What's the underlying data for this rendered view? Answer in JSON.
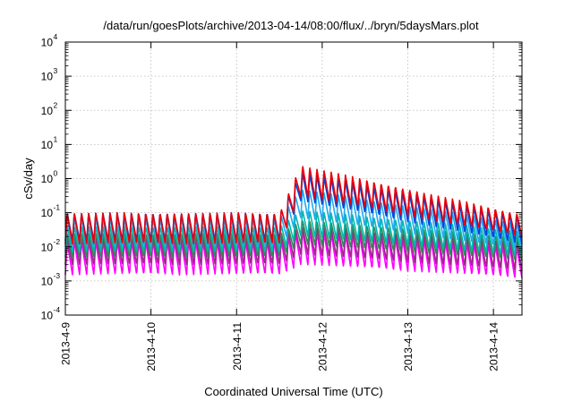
{
  "chart_data": {
    "type": "line",
    "title": "/data/run/goesPlots/archive/2013-04-14/08:00/flux/../bryn/5daysMars.plot",
    "xlabel": "Coordinated Universal Time (UTC)",
    "ylabel": "cSv/day",
    "yscale": "log",
    "ylim_exponents": [
      -4,
      4
    ],
    "y_tick_labels": [
      {
        "base": "10",
        "exp": "-4"
      },
      {
        "base": "10",
        "exp": "-3"
      },
      {
        "base": "10",
        "exp": "-2"
      },
      {
        "base": "10",
        "exp": "-1"
      },
      {
        "base": "10",
        "exp": "0"
      },
      {
        "base": "10",
        "exp": "1"
      },
      {
        "base": "10",
        "exp": "2"
      },
      {
        "base": "10",
        "exp": "3"
      },
      {
        "base": "10",
        "exp": "4"
      }
    ],
    "x_ticks": [
      "2013-4-9",
      "2013-4-10",
      "2013-4-11",
      "2013-4-12",
      "2013-4-13",
      "2013-4-14"
    ],
    "xlim": [
      "2013-04-09T00:00",
      "2013-04-14T08:00"
    ],
    "event_start": "2013-04-11T12:00",
    "peak_time": "2013-04-11T18:00",
    "oscillation_period_hours": 2,
    "grid": true,
    "legend": "none",
    "series_colors": [
      "#e8000b",
      "#0044dd",
      "#22aaee",
      "#00b8b0",
      "#2e8b57",
      "#9a2a88",
      "#ff00ff"
    ],
    "series": [
      {
        "color": "#e8000b",
        "pre_event_peak": 0.1,
        "pre_event_trough": 0.012,
        "event_peak": 2.5,
        "post_event_peak": 0.09,
        "post_event_trough": 0.02
      },
      {
        "color": "#0044dd",
        "pre_event_peak": 0.1,
        "pre_event_trough": 0.015,
        "event_peak": 1.5,
        "post_event_peak": 0.08,
        "post_event_trough": 0.012
      },
      {
        "color": "#22aaee",
        "pre_event_peak": 0.07,
        "pre_event_trough": 0.01,
        "event_peak": 0.5,
        "post_event_peak": 0.05,
        "post_event_trough": 0.008
      },
      {
        "color": "#00b8b0",
        "pre_event_peak": 0.04,
        "pre_event_trough": 0.007,
        "event_peak": 0.12,
        "post_event_peak": 0.03,
        "post_event_trough": 0.005
      },
      {
        "color": "#2e8b57",
        "pre_event_peak": 0.025,
        "pre_event_trough": 0.005,
        "event_peak": 0.06,
        "post_event_peak": 0.02,
        "post_event_trough": 0.004
      },
      {
        "color": "#9a2a88",
        "pre_event_peak": 0.02,
        "pre_event_trough": 0.003,
        "event_peak": 0.04,
        "post_event_peak": 0.015,
        "post_event_trough": 0.002
      },
      {
        "color": "#ff00ff",
        "pre_event_peak": 0.015,
        "pre_event_trough": 0.0015,
        "event_peak": 0.03,
        "post_event_peak": 0.01,
        "post_event_trough": 0.0012
      }
    ]
  }
}
